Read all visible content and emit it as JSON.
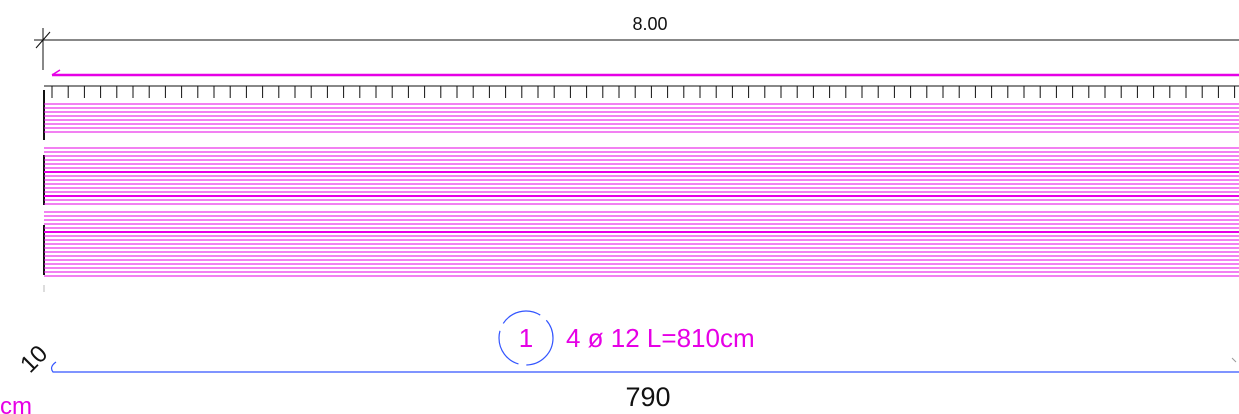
{
  "drawing": {
    "top_dimension": "8.00",
    "bar_mark_number": "1",
    "bar_callout": "4 ø 12 L=810cm",
    "bar_length_label": "790",
    "hook_label": "10",
    "cut_unit_label": "cm"
  },
  "colors": {
    "rebar": "#e600e6",
    "bar_line": "#3355ff",
    "dimension": "#111111",
    "mark_circle": "#3355ff"
  }
}
